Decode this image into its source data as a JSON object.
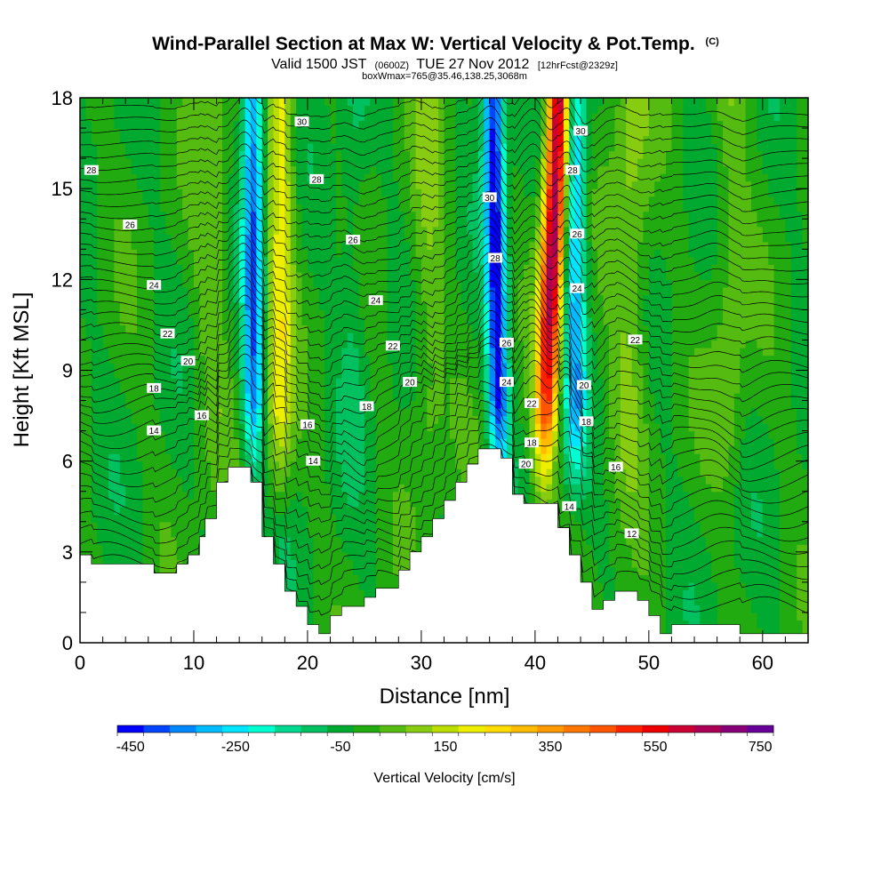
{
  "chart_data": {
    "type": "heatmap",
    "title": "Wind-Parallel Section at Max W: Vertical Velocity & Pot.Temp.",
    "title_mark": "(C)",
    "subtitle": {
      "pre": "Valid 1500 JST",
      "small": "(0600Z)",
      "mid": "TUE 27 Nov 2012",
      "suffix": "[12hrFcst@2329z]"
    },
    "subtitle2": "boxWmax=765@35.46,138.25,3068m",
    "xlabel": "Distance [nm]",
    "ylabel": "Height [Kft MSL]",
    "xlim": [
      0,
      64
    ],
    "ylim": [
      0,
      18
    ],
    "x_ticks": [
      0,
      10,
      20,
      30,
      40,
      50,
      60
    ],
    "y_ticks": [
      0,
      3,
      6,
      9,
      12,
      15,
      18
    ],
    "colorbar": {
      "label": "Vertical Velocity [cm/s]",
      "tick_labels": [
        "-450",
        "-250",
        "-50",
        "150",
        "350",
        "550",
        "750"
      ],
      "tick_values": [
        -450,
        -250,
        -50,
        150,
        350,
        550,
        750
      ],
      "range": [
        -475,
        775
      ],
      "colors": [
        "#0000ff",
        "#0044ff",
        "#0088ff",
        "#00bbff",
        "#00e5ff",
        "#00ffd0",
        "#00d890",
        "#00c060",
        "#00aa30",
        "#22aa11",
        "#55bb11",
        "#88cc11",
        "#bbdd00",
        "#eeee00",
        "#ffdd00",
        "#ffbb00",
        "#ff9900",
        "#ff7700",
        "#ff5500",
        "#ff2200",
        "#ee0000",
        "#cc0033",
        "#aa0055",
        "#880077",
        "#660099"
      ]
    },
    "terrain": [
      [
        0,
        2.9
      ],
      [
        1,
        2.9
      ],
      [
        1,
        2.6
      ],
      [
        6.5,
        2.6
      ],
      [
        6.5,
        2.3
      ],
      [
        8.5,
        2.3
      ],
      [
        8.5,
        2.6
      ],
      [
        9.5,
        2.6
      ],
      [
        9.5,
        2.9
      ],
      [
        10.5,
        2.9
      ],
      [
        10.5,
        3.5
      ],
      [
        11,
        3.5
      ],
      [
        11,
        4.1
      ],
      [
        12,
        4.1
      ],
      [
        12,
        5.3
      ],
      [
        13,
        5.3
      ],
      [
        13,
        5.8
      ],
      [
        15,
        5.8
      ],
      [
        15,
        5.3
      ],
      [
        16,
        5.3
      ],
      [
        16,
        3.5
      ],
      [
        17,
        3.5
      ],
      [
        17,
        2.6
      ],
      [
        18,
        2.6
      ],
      [
        18,
        1.7
      ],
      [
        19,
        1.7
      ],
      [
        19,
        1.2
      ],
      [
        20,
        1.2
      ],
      [
        20,
        0.6
      ],
      [
        21,
        0.6
      ],
      [
        21,
        0.3
      ],
      [
        22,
        0.3
      ],
      [
        22,
        0.9
      ],
      [
        23,
        0.9
      ],
      [
        23,
        1.2
      ],
      [
        25,
        1.2
      ],
      [
        25,
        1.5
      ],
      [
        26,
        1.5
      ],
      [
        26,
        1.8
      ],
      [
        28,
        1.8
      ],
      [
        28,
        2.4
      ],
      [
        29,
        2.4
      ],
      [
        29,
        3.0
      ],
      [
        30,
        3.0
      ],
      [
        30,
        3.5
      ],
      [
        31,
        3.5
      ],
      [
        31,
        4.1
      ],
      [
        32,
        4.1
      ],
      [
        32,
        4.7
      ],
      [
        33,
        4.7
      ],
      [
        33,
        5.3
      ],
      [
        34,
        5.3
      ],
      [
        34,
        5.9
      ],
      [
        35,
        5.9
      ],
      [
        35,
        6.4
      ],
      [
        37,
        6.4
      ],
      [
        37,
        6.1
      ],
      [
        38,
        6.1
      ],
      [
        38,
        4.9
      ],
      [
        39,
        4.9
      ],
      [
        39,
        4.6
      ],
      [
        42,
        4.6
      ],
      [
        42,
        3.8
      ],
      [
        43,
        3.8
      ],
      [
        43,
        2.9
      ],
      [
        44,
        2.9
      ],
      [
        44,
        2.0
      ],
      [
        45,
        2.0
      ],
      [
        45,
        1.1
      ],
      [
        46,
        1.1
      ],
      [
        46,
        1.4
      ],
      [
        47,
        1.4
      ],
      [
        47,
        1.7
      ],
      [
        49,
        1.7
      ],
      [
        49,
        1.4
      ],
      [
        50,
        1.4
      ],
      [
        50,
        0.9
      ],
      [
        51,
        0.9
      ],
      [
        51,
        0.3
      ],
      [
        52,
        0.3
      ],
      [
        52,
        0.6
      ],
      [
        58,
        0.6
      ],
      [
        58,
        0.3
      ],
      [
        64,
        0.3
      ]
    ],
    "updrafts": [
      {
        "x": 17.5,
        "w": 1.1,
        "amp": 210
      },
      {
        "x": 40.7,
        "w": 1.0,
        "amp": 700
      },
      {
        "x": 48.2,
        "w": 1.7,
        "amp": 110
      },
      {
        "x": 30.5,
        "w": 1.5,
        "amp": 80
      },
      {
        "x": 11.5,
        "w": 1.6,
        "amp": 70
      },
      {
        "x": 57.0,
        "w": 1.6,
        "amp": 75
      }
    ],
    "downdrafts": [
      {
        "x": 15.2,
        "w": 0.9,
        "amp": 330
      },
      {
        "x": 36.9,
        "w": 0.9,
        "amp": 430
      },
      {
        "x": 43.5,
        "w": 1.0,
        "amp": 280
      },
      {
        "x": 24.0,
        "w": 1.2,
        "amp": 60
      }
    ],
    "theta_labels": [
      {
        "text": "30",
        "x": 19.5,
        "y": 17.2
      },
      {
        "text": "28",
        "x": 1.0,
        "y": 15.6
      },
      {
        "text": "28",
        "x": 20.8,
        "y": 15.3
      },
      {
        "text": "26",
        "x": 4.4,
        "y": 13.8
      },
      {
        "text": "26",
        "x": 24.0,
        "y": 13.3
      },
      {
        "text": "24",
        "x": 6.5,
        "y": 11.8
      },
      {
        "text": "24",
        "x": 26.0,
        "y": 11.3
      },
      {
        "text": "22",
        "x": 7.7,
        "y": 10.2
      },
      {
        "text": "22",
        "x": 27.5,
        "y": 9.8
      },
      {
        "text": "20",
        "x": 9.5,
        "y": 9.3
      },
      {
        "text": "20",
        "x": 29.0,
        "y": 8.6
      },
      {
        "text": "18",
        "x": 6.5,
        "y": 8.4
      },
      {
        "text": "18",
        "x": 25.2,
        "y": 7.8
      },
      {
        "text": "16",
        "x": 10.7,
        "y": 7.5
      },
      {
        "text": "16",
        "x": 20.0,
        "y": 7.2
      },
      {
        "text": "14",
        "x": 6.5,
        "y": 7.0
      },
      {
        "text": "14",
        "x": 20.5,
        "y": 6.0
      },
      {
        "text": "30",
        "x": 36.0,
        "y": 14.7
      },
      {
        "text": "28",
        "x": 36.5,
        "y": 12.7
      },
      {
        "text": "26",
        "x": 37.5,
        "y": 9.9
      },
      {
        "text": "24",
        "x": 37.5,
        "y": 8.6
      },
      {
        "text": "22",
        "x": 39.7,
        "y": 7.9
      },
      {
        "text": "18",
        "x": 39.7,
        "y": 6.6
      },
      {
        "text": "20",
        "x": 39.2,
        "y": 5.9
      },
      {
        "text": "30",
        "x": 44.0,
        "y": 16.9
      },
      {
        "text": "28",
        "x": 43.3,
        "y": 15.6
      },
      {
        "text": "26",
        "x": 43.7,
        "y": 13.5
      },
      {
        "text": "24",
        "x": 43.7,
        "y": 11.7
      },
      {
        "text": "22",
        "x": 48.8,
        "y": 10.0
      },
      {
        "text": "20",
        "x": 44.3,
        "y": 8.5
      },
      {
        "text": "18",
        "x": 44.5,
        "y": 7.3
      },
      {
        "text": "16",
        "x": 47.1,
        "y": 5.8
      },
      {
        "text": "14",
        "x": 43.0,
        "y": 4.5
      },
      {
        "text": "12",
        "x": 48.5,
        "y": 3.6
      }
    ]
  }
}
